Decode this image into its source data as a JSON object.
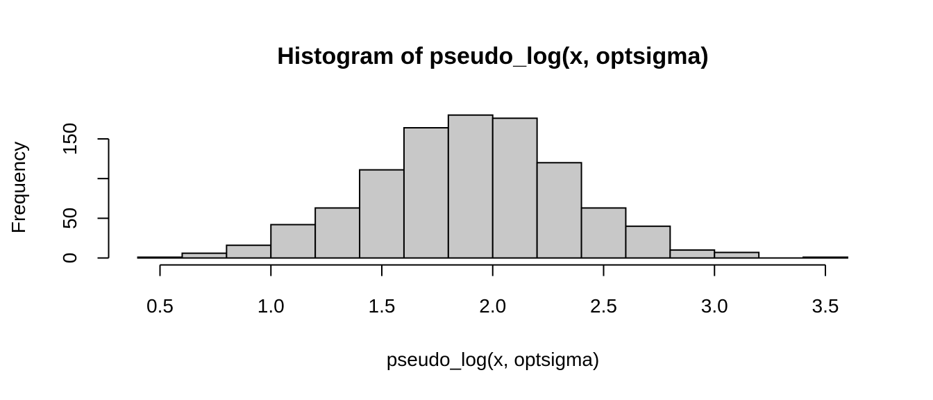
{
  "chart_data": {
    "type": "bar",
    "subtype": "histogram",
    "title": "Histogram of pseudo_log(x, optsigma)",
    "xlabel": "pseudo_log(x, optsigma)",
    "ylabel": "Frequency",
    "bar_color": "#c8c8c8",
    "edge_color": "#000000",
    "xlim": [
      0.4,
      3.6
    ],
    "ylim": [
      0,
      190
    ],
    "x_ticks": [
      0.5,
      1.0,
      1.5,
      2.0,
      2.5,
      3.0,
      3.5
    ],
    "x_tick_labels": [
      "0.5",
      "1.0",
      "1.5",
      "2.0",
      "2.5",
      "3.0",
      "3.5"
    ],
    "y_ticks": [
      0,
      50,
      100,
      150
    ],
    "y_tick_labels": [
      "0",
      "50",
      "",
      "150"
    ],
    "bins": [
      {
        "x0": 0.4,
        "x1": 0.6,
        "count": 1
      },
      {
        "x0": 0.6,
        "x1": 0.8,
        "count": 6
      },
      {
        "x0": 0.8,
        "x1": 1.0,
        "count": 16
      },
      {
        "x0": 1.0,
        "x1": 1.2,
        "count": 42
      },
      {
        "x0": 1.2,
        "x1": 1.4,
        "count": 63
      },
      {
        "x0": 1.4,
        "x1": 1.6,
        "count": 111
      },
      {
        "x0": 1.6,
        "x1": 1.8,
        "count": 164
      },
      {
        "x0": 1.8,
        "x1": 2.0,
        "count": 180
      },
      {
        "x0": 2.0,
        "x1": 2.2,
        "count": 176
      },
      {
        "x0": 2.2,
        "x1": 2.4,
        "count": 120
      },
      {
        "x0": 2.4,
        "x1": 2.6,
        "count": 63
      },
      {
        "x0": 2.6,
        "x1": 2.8,
        "count": 40
      },
      {
        "x0": 2.8,
        "x1": 3.0,
        "count": 10
      },
      {
        "x0": 3.0,
        "x1": 3.2,
        "count": 7
      },
      {
        "x0": 3.2,
        "x1": 3.4,
        "count": 0
      },
      {
        "x0": 3.4,
        "x1": 3.6,
        "count": 1
      }
    ]
  }
}
